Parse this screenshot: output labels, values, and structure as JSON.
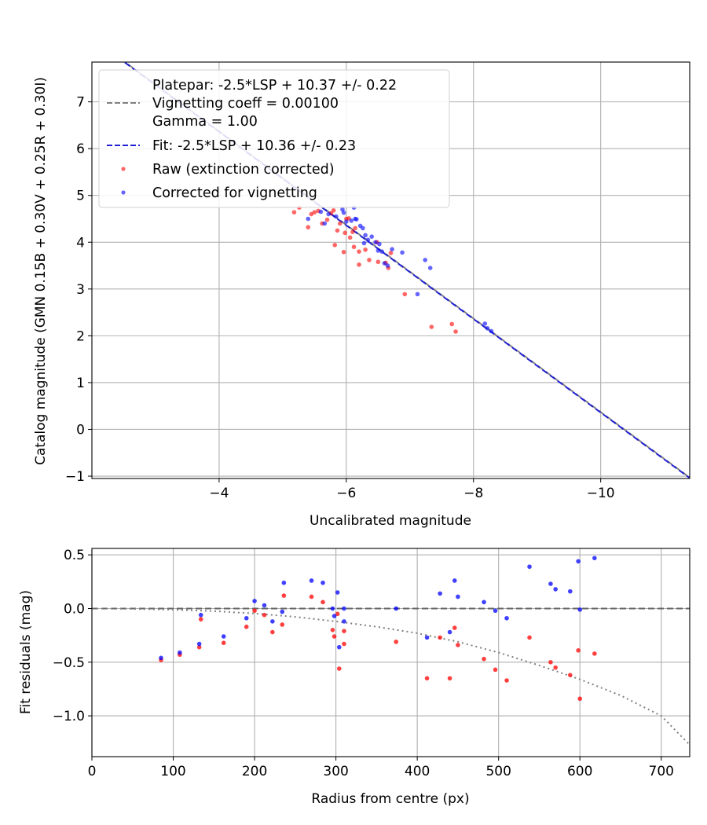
{
  "chart_data": [
    {
      "type": "scatter",
      "xlabel": "Uncalibrated magnitude",
      "ylabel": "Catalog magnitude (GMN 0.15B + 0.30V + 0.25R + 0.30I)",
      "xlim": [
        -2.0,
        -11.4
      ],
      "ylim": [
        7.85,
        -1.05
      ],
      "x_inverted": true,
      "y_inverted": true,
      "grid": true,
      "legend_placement": "top-left",
      "xticks": [
        -4,
        -6,
        -8,
        -10
      ],
      "yticks": [
        -1,
        0,
        1,
        2,
        3,
        4,
        5,
        6,
        7
      ],
      "xtick_labels": [
        "−4",
        "−6",
        "−8",
        "−10"
      ],
      "ytick_labels": [
        "−1",
        "0",
        "1",
        "2",
        "3",
        "4",
        "5",
        "6",
        "7"
      ],
      "legend": [
        {
          "label": "Platepar: -2.5*LSP + 10.37 +/- 0.22"
        },
        {
          "label": "Vignetting coeff = 0.00100",
          "marker": "dashed-line",
          "color": "#808080"
        },
        {
          "label": "Gamma = 1.00"
        },
        {
          "label": "Fit: -2.5*LSP + 10.36 +/- 0.23",
          "marker": "dashed-line",
          "color": "#2020d0"
        },
        {
          "label": "Raw (extinction corrected)",
          "marker": "dot",
          "color": "#ff0000"
        },
        {
          "label": "Corrected for vignetting",
          "marker": "dot",
          "color": "#0000ff"
        }
      ],
      "lines": [
        {
          "name": "Platepar",
          "slope": 1,
          "intercept": 10.37,
          "color": "#808080",
          "style": "dashed"
        },
        {
          "name": "Fit",
          "slope": 1,
          "intercept": 10.36,
          "color": "#2020d0",
          "style": "dashed"
        }
      ],
      "series": [
        {
          "name": "Raw (extinction corrected)",
          "color": "#ff0000",
          "points": [
            [
              -5.18,
              4.64
            ],
            [
              -5.26,
              4.74
            ],
            [
              -5.4,
              4.32
            ],
            [
              -5.45,
              4.6
            ],
            [
              -5.5,
              4.64
            ],
            [
              -5.56,
              4.67
            ],
            [
              -5.62,
              4.4
            ],
            [
              -5.7,
              4.48
            ],
            [
              -5.76,
              4.62
            ],
            [
              -5.8,
              4.68
            ],
            [
              -5.82,
              3.94
            ],
            [
              -5.86,
              4.25
            ],
            [
              -5.9,
              4.4
            ],
            [
              -5.96,
              3.79
            ],
            [
              -5.98,
              4.2
            ],
            [
              -6.0,
              4.5
            ],
            [
              -6.04,
              4.51
            ],
            [
              -6.06,
              4.1
            ],
            [
              -6.1,
              4.22
            ],
            [
              -6.12,
              3.9
            ],
            [
              -6.14,
              4.3
            ],
            [
              -6.2,
              3.8
            ],
            [
              -6.2,
              3.52
            ],
            [
              -6.3,
              3.84
            ],
            [
              -6.36,
              3.62
            ],
            [
              -6.48,
              4.0
            ],
            [
              -6.5,
              3.58
            ],
            [
              -6.62,
              3.56
            ],
            [
              -6.66,
              3.45
            ],
            [
              -6.7,
              3.77
            ],
            [
              -6.92,
              2.89
            ],
            [
              -7.34,
              2.19
            ],
            [
              -7.66,
              2.25
            ],
            [
              -7.72,
              2.09
            ]
          ]
        },
        {
          "name": "Corrected for vignetting",
          "color": "#0000ff",
          "points": [
            [
              -5.4,
              4.5
            ],
            [
              -5.6,
              4.65
            ],
            [
              -5.66,
              4.4
            ],
            [
              -5.72,
              4.6
            ],
            [
              -5.84,
              4.55
            ],
            [
              -5.94,
              4.7
            ],
            [
              -5.96,
              4.63
            ],
            [
              -6.0,
              4.44
            ],
            [
              -6.08,
              4.46
            ],
            [
              -6.12,
              4.74
            ],
            [
              -6.14,
              4.5
            ],
            [
              -6.16,
              4.49
            ],
            [
              -6.22,
              4.35
            ],
            [
              -6.26,
              4.3
            ],
            [
              -6.28,
              3.98
            ],
            [
              -6.3,
              4.15
            ],
            [
              -6.34,
              4.05
            ],
            [
              -6.4,
              4.12
            ],
            [
              -6.46,
              4.0
            ],
            [
              -6.5,
              3.82
            ],
            [
              -6.52,
              3.96
            ],
            [
              -6.56,
              3.8
            ],
            [
              -6.6,
              3.55
            ],
            [
              -6.65,
              3.5
            ],
            [
              -6.72,
              3.85
            ],
            [
              -6.88,
              3.78
            ],
            [
              -7.12,
              2.89
            ],
            [
              -7.24,
              3.62
            ],
            [
              -7.32,
              3.45
            ],
            [
              -8.18,
              2.26
            ],
            [
              -8.22,
              2.16
            ],
            [
              -8.28,
              2.1
            ]
          ]
        }
      ]
    },
    {
      "type": "scatter",
      "xlabel": "Radius from centre (px)",
      "ylabel": "Fit residuals (mag)",
      "xlim": [
        0,
        735
      ],
      "ylim": [
        -1.38,
        0.56
      ],
      "grid": true,
      "xticks": [
        0,
        100,
        200,
        300,
        400,
        500,
        600,
        700
      ],
      "yticks": [
        0.5,
        0.0,
        -0.5,
        -1.0
      ],
      "xtick_labels": [
        "0",
        "100",
        "200",
        "300",
        "400",
        "500",
        "600",
        "700"
      ],
      "ytick_labels": [
        "0.5",
        "0.0",
        "−0.5",
        "−1.0"
      ],
      "lines": [
        {
          "name": "zero",
          "type": "horizontal",
          "y": 0,
          "color": "#666666",
          "style": "dashed"
        },
        {
          "name": "vignetting curve",
          "type": "curve",
          "color": "#808080",
          "style": "dotted",
          "points": [
            [
              0,
              0.0
            ],
            [
              50,
              -0.003
            ],
            [
              100,
              -0.011
            ],
            [
              150,
              -0.024
            ],
            [
              200,
              -0.046
            ],
            [
              250,
              -0.078
            ],
            [
              300,
              -0.12
            ],
            [
              350,
              -0.17
            ],
            [
              400,
              -0.23
            ],
            [
              450,
              -0.31
            ],
            [
              500,
              -0.41
            ],
            [
              550,
              -0.53
            ],
            [
              600,
              -0.66
            ],
            [
              650,
              -0.81
            ],
            [
              700,
              -1.0
            ],
            [
              735,
              -1.27
            ]
          ]
        }
      ],
      "series": [
        {
          "name": "Raw (extinction corrected)",
          "color": "#ff0000",
          "points": [
            [
              85,
              -0.48
            ],
            [
              108,
              -0.43
            ],
            [
              132,
              -0.36
            ],
            [
              134,
              -0.1
            ],
            [
              162,
              -0.32
            ],
            [
              190,
              -0.17
            ],
            [
              200,
              -0.02
            ],
            [
              212,
              -0.06
            ],
            [
              222,
              -0.22
            ],
            [
              234,
              -0.15
            ],
            [
              236,
              0.12
            ],
            [
              270,
              0.11
            ],
            [
              284,
              0.06
            ],
            [
              296,
              -0.2
            ],
            [
              298,
              -0.26
            ],
            [
              302,
              -0.05
            ],
            [
              304,
              -0.56
            ],
            [
              310,
              -0.33
            ],
            [
              310,
              -0.21
            ],
            [
              374,
              -0.31
            ],
            [
              412,
              -0.65
            ],
            [
              428,
              -0.27
            ],
            [
              440,
              -0.65
            ],
            [
              446,
              -0.18
            ],
            [
              450,
              -0.34
            ],
            [
              482,
              -0.47
            ],
            [
              496,
              -0.57
            ],
            [
              510,
              -0.67
            ],
            [
              538,
              -0.27
            ],
            [
              564,
              -0.5
            ],
            [
              570,
              -0.55
            ],
            [
              588,
              -0.62
            ],
            [
              598,
              -0.39
            ],
            [
              600,
              -0.84
            ],
            [
              618,
              -0.42
            ]
          ]
        },
        {
          "name": "Corrected for vignetting",
          "color": "#0000ff",
          "points": [
            [
              85,
              -0.46
            ],
            [
              108,
              -0.41
            ],
            [
              132,
              -0.33
            ],
            [
              134,
              -0.06
            ],
            [
              162,
              -0.26
            ],
            [
              190,
              -0.09
            ],
            [
              200,
              0.07
            ],
            [
              212,
              0.03
            ],
            [
              222,
              -0.12
            ],
            [
              234,
              -0.03
            ],
            [
              236,
              0.24
            ],
            [
              270,
              0.26
            ],
            [
              284,
              0.24
            ],
            [
              296,
              0.0
            ],
            [
              298,
              -0.07
            ],
            [
              302,
              0.15
            ],
            [
              304,
              -0.36
            ],
            [
              310,
              -0.12
            ],
            [
              310,
              0.0
            ],
            [
              374,
              0.0
            ],
            [
              412,
              -0.27
            ],
            [
              428,
              0.14
            ],
            [
              440,
              -0.22
            ],
            [
              446,
              0.26
            ],
            [
              450,
              0.11
            ],
            [
              482,
              0.06
            ],
            [
              496,
              -0.02
            ],
            [
              510,
              -0.09
            ],
            [
              538,
              0.39
            ],
            [
              564,
              0.23
            ],
            [
              570,
              0.18
            ],
            [
              588,
              0.16
            ],
            [
              598,
              0.44
            ],
            [
              600,
              -0.01
            ],
            [
              618,
              0.47
            ]
          ]
        }
      ]
    }
  ]
}
